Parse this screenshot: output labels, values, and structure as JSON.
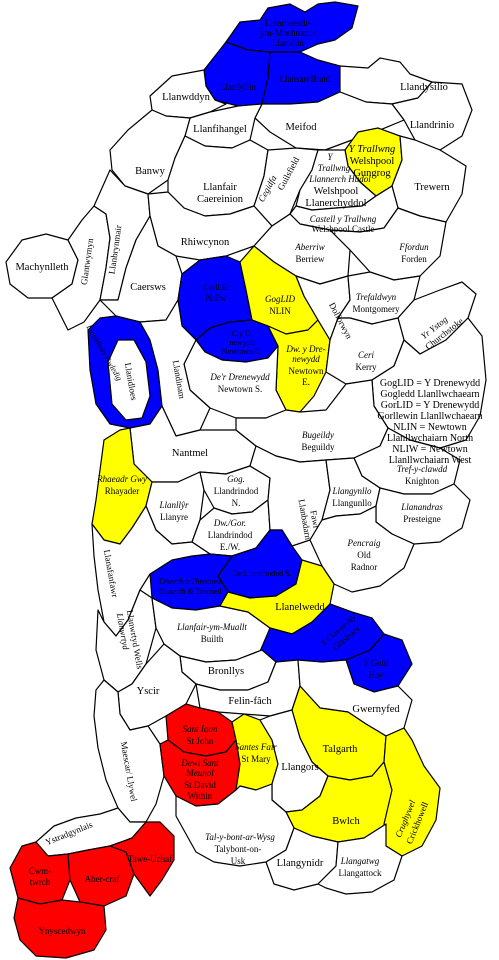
{
  "colors": {
    "blue": "#0000ff",
    "yellow": "#ffff00",
    "red": "#ff0000",
    "white": "#ffffff",
    "border": "#000000"
  },
  "places": {
    "llanrhaeadr": [
      "Llanrhaeadr-",
      "ym-Mochnant /",
      "Llansilin"
    ],
    "llanfyllin": "Llanfyllin",
    "llansantffraid": "Llansantffraid",
    "llandysilio": "Llandysilio",
    "llanwddyn": "Llanwddyn",
    "llandrinio": "Llandrinio",
    "meifod": "Meifod",
    "llanfihangel": "Llanfihangel",
    "banwy": "Banwy",
    "llanfair": [
      "Llanfair",
      "Caereinion"
    ],
    "guilsfield_cy": "Cegidfa",
    "guilsfield": "Guilsfield",
    "welshpool_gungrog_cy": "Y Trallwng",
    "welshpool_gungrog": [
      "Welshpool",
      "Gungrog"
    ],
    "llanerchyddol_cy": [
      "Y",
      "Trallwng",
      "Llannerch Hudol"
    ],
    "llanerchyddol": [
      "Welshpool",
      "Llanerchyddol"
    ],
    "trewern": "Trewern",
    "welshpool_castle_cy": "Castell y Trallwng",
    "welshpool_castle": "Welshpool Castle",
    "machynlleth": "Machynlleth",
    "glantwymyn": "Glantwymyn",
    "llanbrynmair": "Llanbrynmair",
    "rhiwcynon": "Rhiwcynon",
    "berriew_cy": "Aberriw",
    "berriew": "Berriew",
    "forden_cy": "Ffordun",
    "forden": "Forden",
    "caersws": "Caersws",
    "nlew_cy": [
      "Gorll.E/",
      "N.Ew"
    ],
    "nlin_cy": "GogLID",
    "nlin": "NLIN",
    "newtown_central": [
      "C.y D.",
      "newydd",
      "Newtown C."
    ],
    "newtown_east_cy": "Dw. y Dre-",
    "newtown_east_cy2": "newydd",
    "newtown_east": [
      "Newtown",
      "E."
    ],
    "newtown_south_cy": "De'r Drenewydd",
    "newtown_south": "Newtown S.",
    "dolforwyn": "Dolforwyn",
    "montgomery_cy": "Trefaldwyn",
    "montgomery": "Montgomery",
    "churchstoke_cy": "Yr Ystog",
    "churchstoke": "Churchstoke",
    "kerry_cy": "Ceri",
    "kerry": "Kerry",
    "llanidloes": "Llanidloes",
    "llanidloes_rural": "Llanidloes Gwledig",
    "llandinam": "Llandinam",
    "key": [
      "GogLID = Y Drenewydd",
      "Gogledd Llanllwchaearn",
      "GorLID = Y Drenewydd",
      "Gorllewin Llanllwchaearn",
      "NLIN = Newtown",
      "Llanllwchaiarn North",
      "NLIW = Newtown",
      "Llanllwchaiarn West"
    ],
    "nantmel": "Nantmel",
    "beguildy_cy": "Bugeildy",
    "beguildy": "Beguildy",
    "knighton_cy": "Tref-y-clawdd",
    "knighton": "Knighton",
    "rhayader_cy": "Rhaeadr Gwy",
    "rhayader": "Rhayader",
    "llanyre_cy": "Llanllŷr",
    "llanyre": "Llanyre",
    "llandrindod_n_cy": "Gog.",
    "llandrindod_n": [
      "Llandrindod",
      "N."
    ],
    "llandrindod_ew_cy": "Dw./Gor.",
    "llandrindod_ew": [
      "Llandrindod",
      "E./W."
    ],
    "llanbadarn": [
      "Llanbadarn",
      "Fawr"
    ],
    "llangunllo_cy": "Llangynllo",
    "llangunllo": "Llangunllo",
    "presteigne_cy": "Llanandras",
    "presteigne": "Presteigne",
    "oldradnor_cy": "Pencraig",
    "oldradnor": [
      "Old",
      "Radnor"
    ],
    "llandrindod_s": "De Llandrindod S.",
    "disserth": [
      "Diserth a Threcoed",
      "Disserth & Trecoed"
    ],
    "llanafanfawr": "Llanafanfawr",
    "llanwrtyd_cy": "Llanwrtyd",
    "llanwrtyd": "Llanwrtyd Wells",
    "builth_cy": "Llanfair-ym-Muallt",
    "builth": "Builth",
    "llanelwedd": "Llanelwedd",
    "glasbury_cy": "Y Clas-ar-Wy",
    "glasbury": "Glasbury",
    "hay_cy": "Y Gelli",
    "hay": "Hay",
    "bronllys": "Bronllys",
    "yscir": "Yscir",
    "felinfach": "Felin-fâch",
    "gwernyfed": "Gwernyfed",
    "maescar": [
      "Maescar/ Llywel"
    ],
    "stjohn_cy": "Sant Ioan",
    "stjohn": "St John",
    "stdavid_cy": [
      "Dewi Sant",
      "Meunol"
    ],
    "stdavid": [
      "St David",
      "Within"
    ],
    "stmary_cy": "Santes Fair",
    "stmary": "St Mary",
    "talgarth": "Talgarth",
    "llangors": "Llangors",
    "bwlch": "Bwlch",
    "crickhowell_cy": "Crughywel",
    "crickhowell": "Crickhowell",
    "talybont_cy": "Tal-y-bont-ar-Wysg",
    "talybont": [
      "Talybont-on-",
      "Usk"
    ],
    "llangynidr": "Llangynidr",
    "llangattock_cy": "Llangatwg",
    "llangattock": "Llangattock",
    "ystradgynlais": "Ystradgynlais",
    "cwmtwrch": [
      "Cwm-",
      "twrch"
    ],
    "abercraf": "Aber-craf",
    "taweuchaf": "Tawe-Uchaf",
    "ynyscedwyn": "Ynyscedwyn"
  }
}
